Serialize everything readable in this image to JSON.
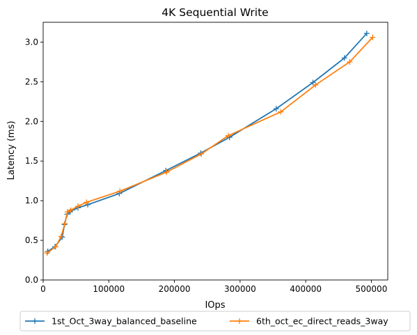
{
  "chart_data": {
    "type": "line",
    "title": "4K  Sequential Write",
    "xlabel": "IOps",
    "ylabel": "Latency (ms)",
    "xlim": [
      0,
      525000
    ],
    "ylim": [
      0,
      3.25
    ],
    "xticks": [
      0,
      100000,
      200000,
      300000,
      400000,
      500000
    ],
    "yticks": [
      0.0,
      0.5,
      1.0,
      1.5,
      2.0,
      2.5,
      3.0
    ],
    "grid": false,
    "legend_position": "bottom-center, outside",
    "series": [
      {
        "name": "1st_Oct_3way_balanced_baseline",
        "color": "#1f77b4",
        "marker": "plus",
        "x": [
          7000,
          18000,
          29000,
          32500,
          36500,
          41000,
          53000,
          68000,
          116000,
          187000,
          240000,
          284000,
          355000,
          411000,
          459000,
          493000
        ],
        "y": [
          0.36,
          0.42,
          0.54,
          0.7,
          0.83,
          0.86,
          0.91,
          0.95,
          1.09,
          1.38,
          1.6,
          1.8,
          2.16,
          2.49,
          2.8,
          3.11
        ]
      },
      {
        "name": "6th_oct_ec_direct_reads_3way",
        "color": "#ff7f0e",
        "marker": "plus",
        "x": [
          6000,
          19000,
          27500,
          33000,
          37000,
          42000,
          53000,
          66000,
          117000,
          188000,
          241000,
          282000,
          362000,
          415000,
          467000,
          502000
        ],
        "y": [
          0.34,
          0.42,
          0.55,
          0.71,
          0.86,
          0.88,
          0.93,
          0.98,
          1.12,
          1.36,
          1.59,
          1.82,
          2.12,
          2.46,
          2.75,
          3.06
        ]
      }
    ]
  }
}
